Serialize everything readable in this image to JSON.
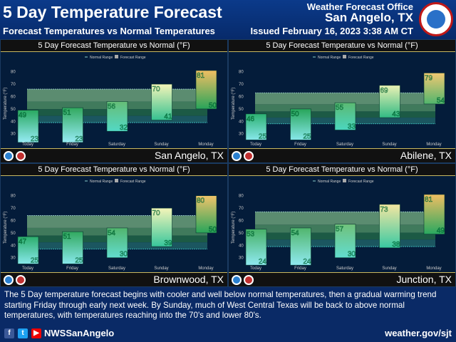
{
  "header": {
    "title": "5 Day Temperature Forecast",
    "subtitle": "Forecast Temperatures vs Normal Temperatures",
    "office_label": "Weather Forecast Office",
    "office": "San Angelo, TX",
    "issued": "Issued February 16, 2023 3:38 AM CT"
  },
  "chart_data": [
    {
      "type": "bar",
      "title": "5 Day Forecast Temperature vs Normal (°F)",
      "location": "San Angelo, TX",
      "ylabel": "Temperature (°F)",
      "legend": [
        "Normal Range",
        "Forecast Range"
      ],
      "categories": [
        "Today",
        "Friday",
        "Saturday",
        "Sunday",
        "Monday"
      ],
      "highs": [
        49,
        51,
        56,
        70,
        81
      ],
      "lows": [
        23,
        23,
        32,
        41,
        50
      ],
      "normal_range": [
        39,
        66
      ],
      "yticks": [
        30,
        40,
        50,
        60,
        70,
        80
      ],
      "ylim": [
        24,
        85
      ]
    },
    {
      "type": "bar",
      "title": "5 Day Forecast Temperature vs Normal (°F)",
      "location": "Abilene, TX",
      "ylabel": "Temperature (°F)",
      "legend": [
        "Normal Range",
        "Forecast Range"
      ],
      "categories": [
        "Today",
        "Friday",
        "Saturday",
        "Sunday",
        "Monday"
      ],
      "highs": [
        46,
        50,
        55,
        69,
        79
      ],
      "lows": [
        25,
        25,
        33,
        43,
        54
      ],
      "normal_range": [
        38,
        63
      ],
      "yticks": [
        30,
        40,
        50,
        60,
        70,
        80
      ],
      "ylim": [
        24,
        85
      ]
    },
    {
      "type": "bar",
      "title": "5 Day Forecast Temperature vs Normal (°F)",
      "location": "Brownwood, TX",
      "ylabel": "Temperature (°F)",
      "legend": [
        "Normal Range",
        "Forecast Range"
      ],
      "categories": [
        "Today",
        "Friday",
        "Saturday",
        "Sunday",
        "Monday"
      ],
      "highs": [
        47,
        51,
        54,
        70,
        80
      ],
      "lows": [
        25,
        25,
        30,
        39,
        50
      ],
      "normal_range": [
        37,
        64
      ],
      "yticks": [
        30,
        40,
        50,
        60,
        70,
        80
      ],
      "ylim": [
        24,
        85
      ]
    },
    {
      "type": "bar",
      "title": "5 Day Forecast Temperature vs Normal (°F)",
      "location": "Junction, TX",
      "ylabel": "Temperature (°F)",
      "legend": [
        "Normal Range",
        "Forecast Range"
      ],
      "categories": [
        "Today",
        "Friday",
        "Saturday",
        "Sunday",
        "Monday"
      ],
      "highs": [
        53,
        54,
        57,
        73,
        81
      ],
      "lows": [
        24,
        24,
        30,
        38,
        49
      ],
      "normal_range": [
        39,
        67
      ],
      "yticks": [
        30,
        40,
        50,
        60,
        70,
        80
      ],
      "ylim": [
        24,
        85
      ]
    }
  ],
  "discussion": "The 5 Day temperature forecast begins with cooler and well below normal temperatures, then a gradual warming trend starting Friday through early next week.  By Sunday, much of West Central Texas will be back to above normal temperatures, with temperatures reaching into the 70's and lower 80's.",
  "footer": {
    "handle": "NWSSanAngelo",
    "website": "weather.gov/sjt",
    "icons": [
      "facebook-icon",
      "twitter-icon",
      "youtube-icon"
    ]
  }
}
